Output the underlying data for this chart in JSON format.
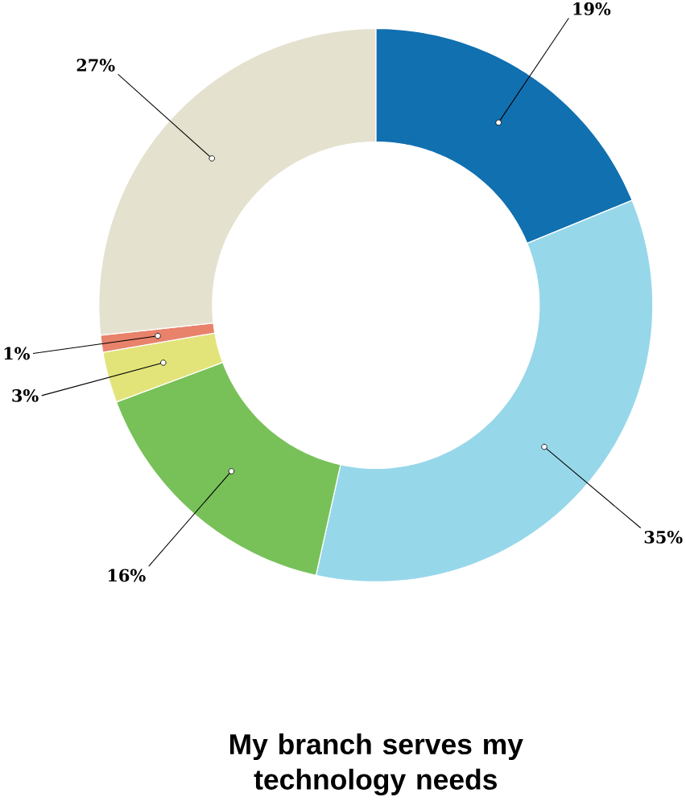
{
  "chart_data": {
    "type": "donut",
    "title": "My branch serves my technology needs",
    "categories": [
      null,
      null,
      null,
      null,
      null,
      null
    ],
    "values": [
      19,
      35,
      16,
      3,
      1,
      27
    ],
    "colors": [
      "#1170b0",
      "#97d7ea",
      "#78c159",
      "#e2e47a",
      "#e8826b",
      "#e5e1cf"
    ],
    "value_labels": [
      "19%",
      "35%",
      "16%",
      "3%",
      "1%",
      "27%"
    ]
  }
}
